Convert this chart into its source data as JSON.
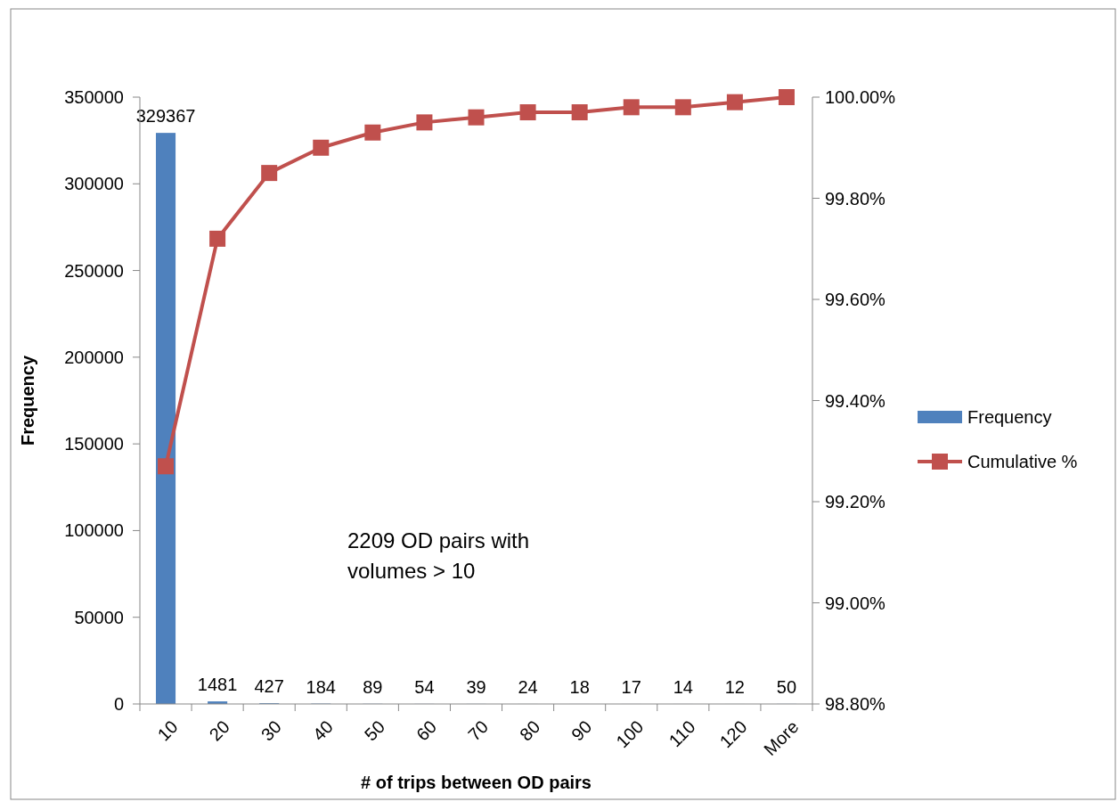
{
  "chart_data": {
    "type": "bar",
    "xlabel": "# of trips between OD pairs",
    "ylabel": "Frequency",
    "categories": [
      "10",
      "20",
      "30",
      "40",
      "50",
      "60",
      "70",
      "80",
      "90",
      "100",
      "110",
      "120",
      "More"
    ],
    "series": [
      {
        "name": "Frequency",
        "color": "#4f81bd",
        "values": [
          329367,
          1481,
          427,
          184,
          89,
          54,
          39,
          24,
          18,
          17,
          14,
          12,
          50
        ],
        "value_labels": [
          "329367",
          "1481",
          "427",
          "184",
          "89",
          "54",
          "39",
          "24",
          "18",
          "17",
          "14",
          "12",
          "50"
        ]
      },
      {
        "name": "Cumulative %",
        "type": "line",
        "axis": "y2",
        "color": "#c0504d",
        "marker": "square",
        "values": [
          99.27,
          99.72,
          99.85,
          99.9,
          99.93,
          99.95,
          99.96,
          99.97,
          99.97,
          99.98,
          99.98,
          99.99,
          100
        ]
      }
    ],
    "ylim": [
      0,
      350000
    ],
    "yticks": [
      0,
      50000,
      100000,
      150000,
      200000,
      250000,
      300000,
      350000
    ],
    "y2lim": [
      98.8,
      100
    ],
    "y2ticks": [
      {
        "value": 98.8,
        "label": "98.80%"
      },
      {
        "value": 99,
        "label": "99.00%"
      },
      {
        "value": 99.2,
        "label": "99.20%"
      },
      {
        "value": 99.4,
        "label": "99.40%"
      },
      {
        "value": 99.6,
        "label": "99.60%"
      },
      {
        "value": 99.8,
        "label": "99.80%"
      },
      {
        "value": 100,
        "label": "100.00%"
      }
    ],
    "legend": "right",
    "grid": false,
    "annotations": [
      "2209 OD pairs with volumes > 10"
    ]
  }
}
